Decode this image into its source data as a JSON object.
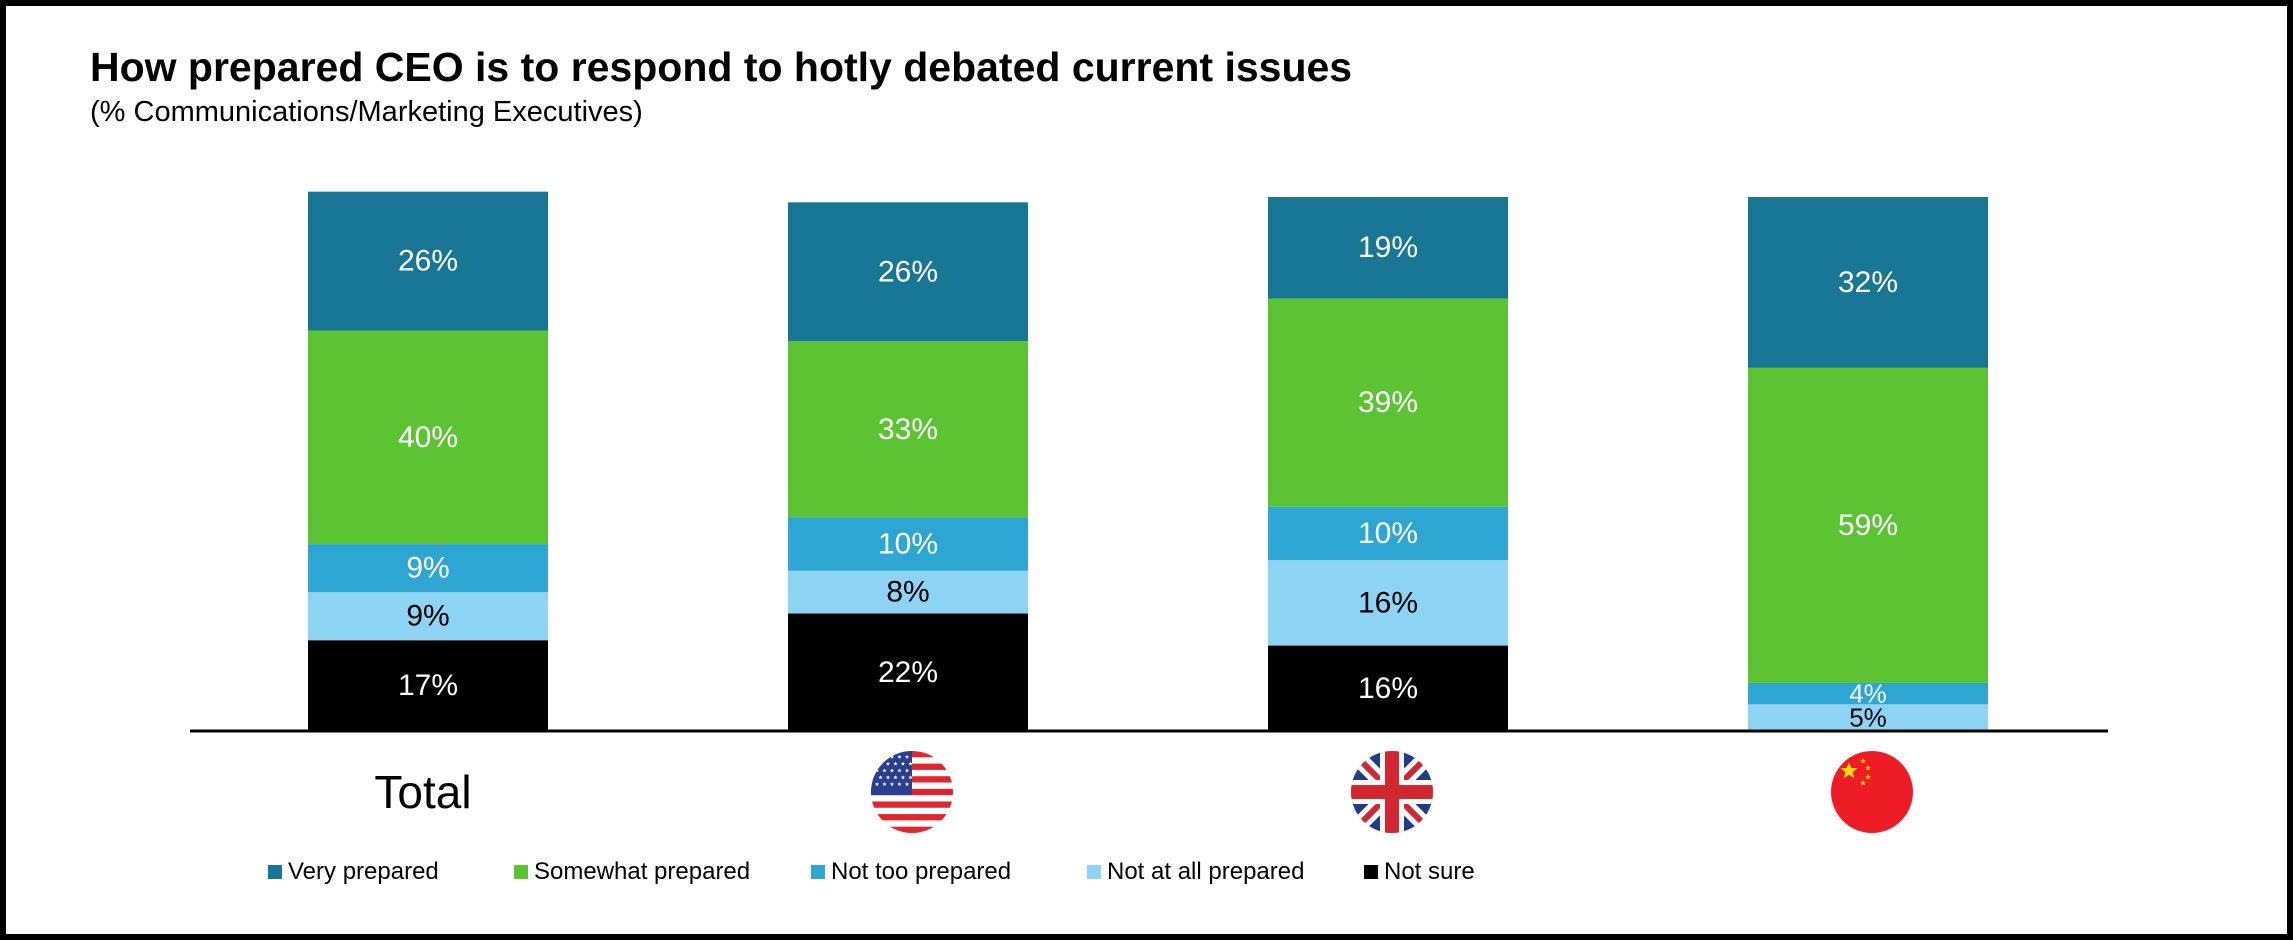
{
  "title": "How prepared CEO is to respond to hotly debated current issues",
  "subtitle": "(% Communications/Marketing Executives)",
  "chart_data": {
    "type": "bar",
    "stacked": true,
    "orientation": "vertical",
    "title": "How prepared CEO is to respond to hotly debated current issues",
    "subtitle": "(% Communications/Marketing Executives)",
    "categories": [
      {
        "label": "Total",
        "flag": ""
      },
      {
        "label": "",
        "flag": "us-flag-icon"
      },
      {
        "label": "",
        "flag": "uk-flag-icon"
      },
      {
        "label": "",
        "flag": "china-flag-icon"
      }
    ],
    "series": [
      {
        "name": "Not sure",
        "color": "#000000",
        "label_color": "#ffffff",
        "values": [
          17,
          22,
          16,
          0
        ]
      },
      {
        "name": "Not at all prepared",
        "color": "#8DD3F3",
        "label_color": "#000000",
        "values": [
          9,
          8,
          16,
          5
        ]
      },
      {
        "name": "Not too prepared",
        "color": "#2EA6D3",
        "label_color": "#ffffff",
        "values": [
          9,
          10,
          10,
          4
        ]
      },
      {
        "name": "Somewhat prepared",
        "color": "#5CC433",
        "label_color": "#ffffff",
        "values": [
          40,
          33,
          39,
          59
        ]
      },
      {
        "name": "Very prepared",
        "color": "#187795",
        "label_color": "#ffffff",
        "values": [
          26,
          26,
          19,
          32
        ]
      }
    ],
    "legend_order": [
      "Very prepared",
      "Somewhat prepared",
      "Not too prepared",
      "Not at all prepared",
      "Not sure"
    ],
    "ylim": [
      0,
      100
    ],
    "grid": false,
    "legend_position": "bottom",
    "value_format": "{v}%"
  }
}
